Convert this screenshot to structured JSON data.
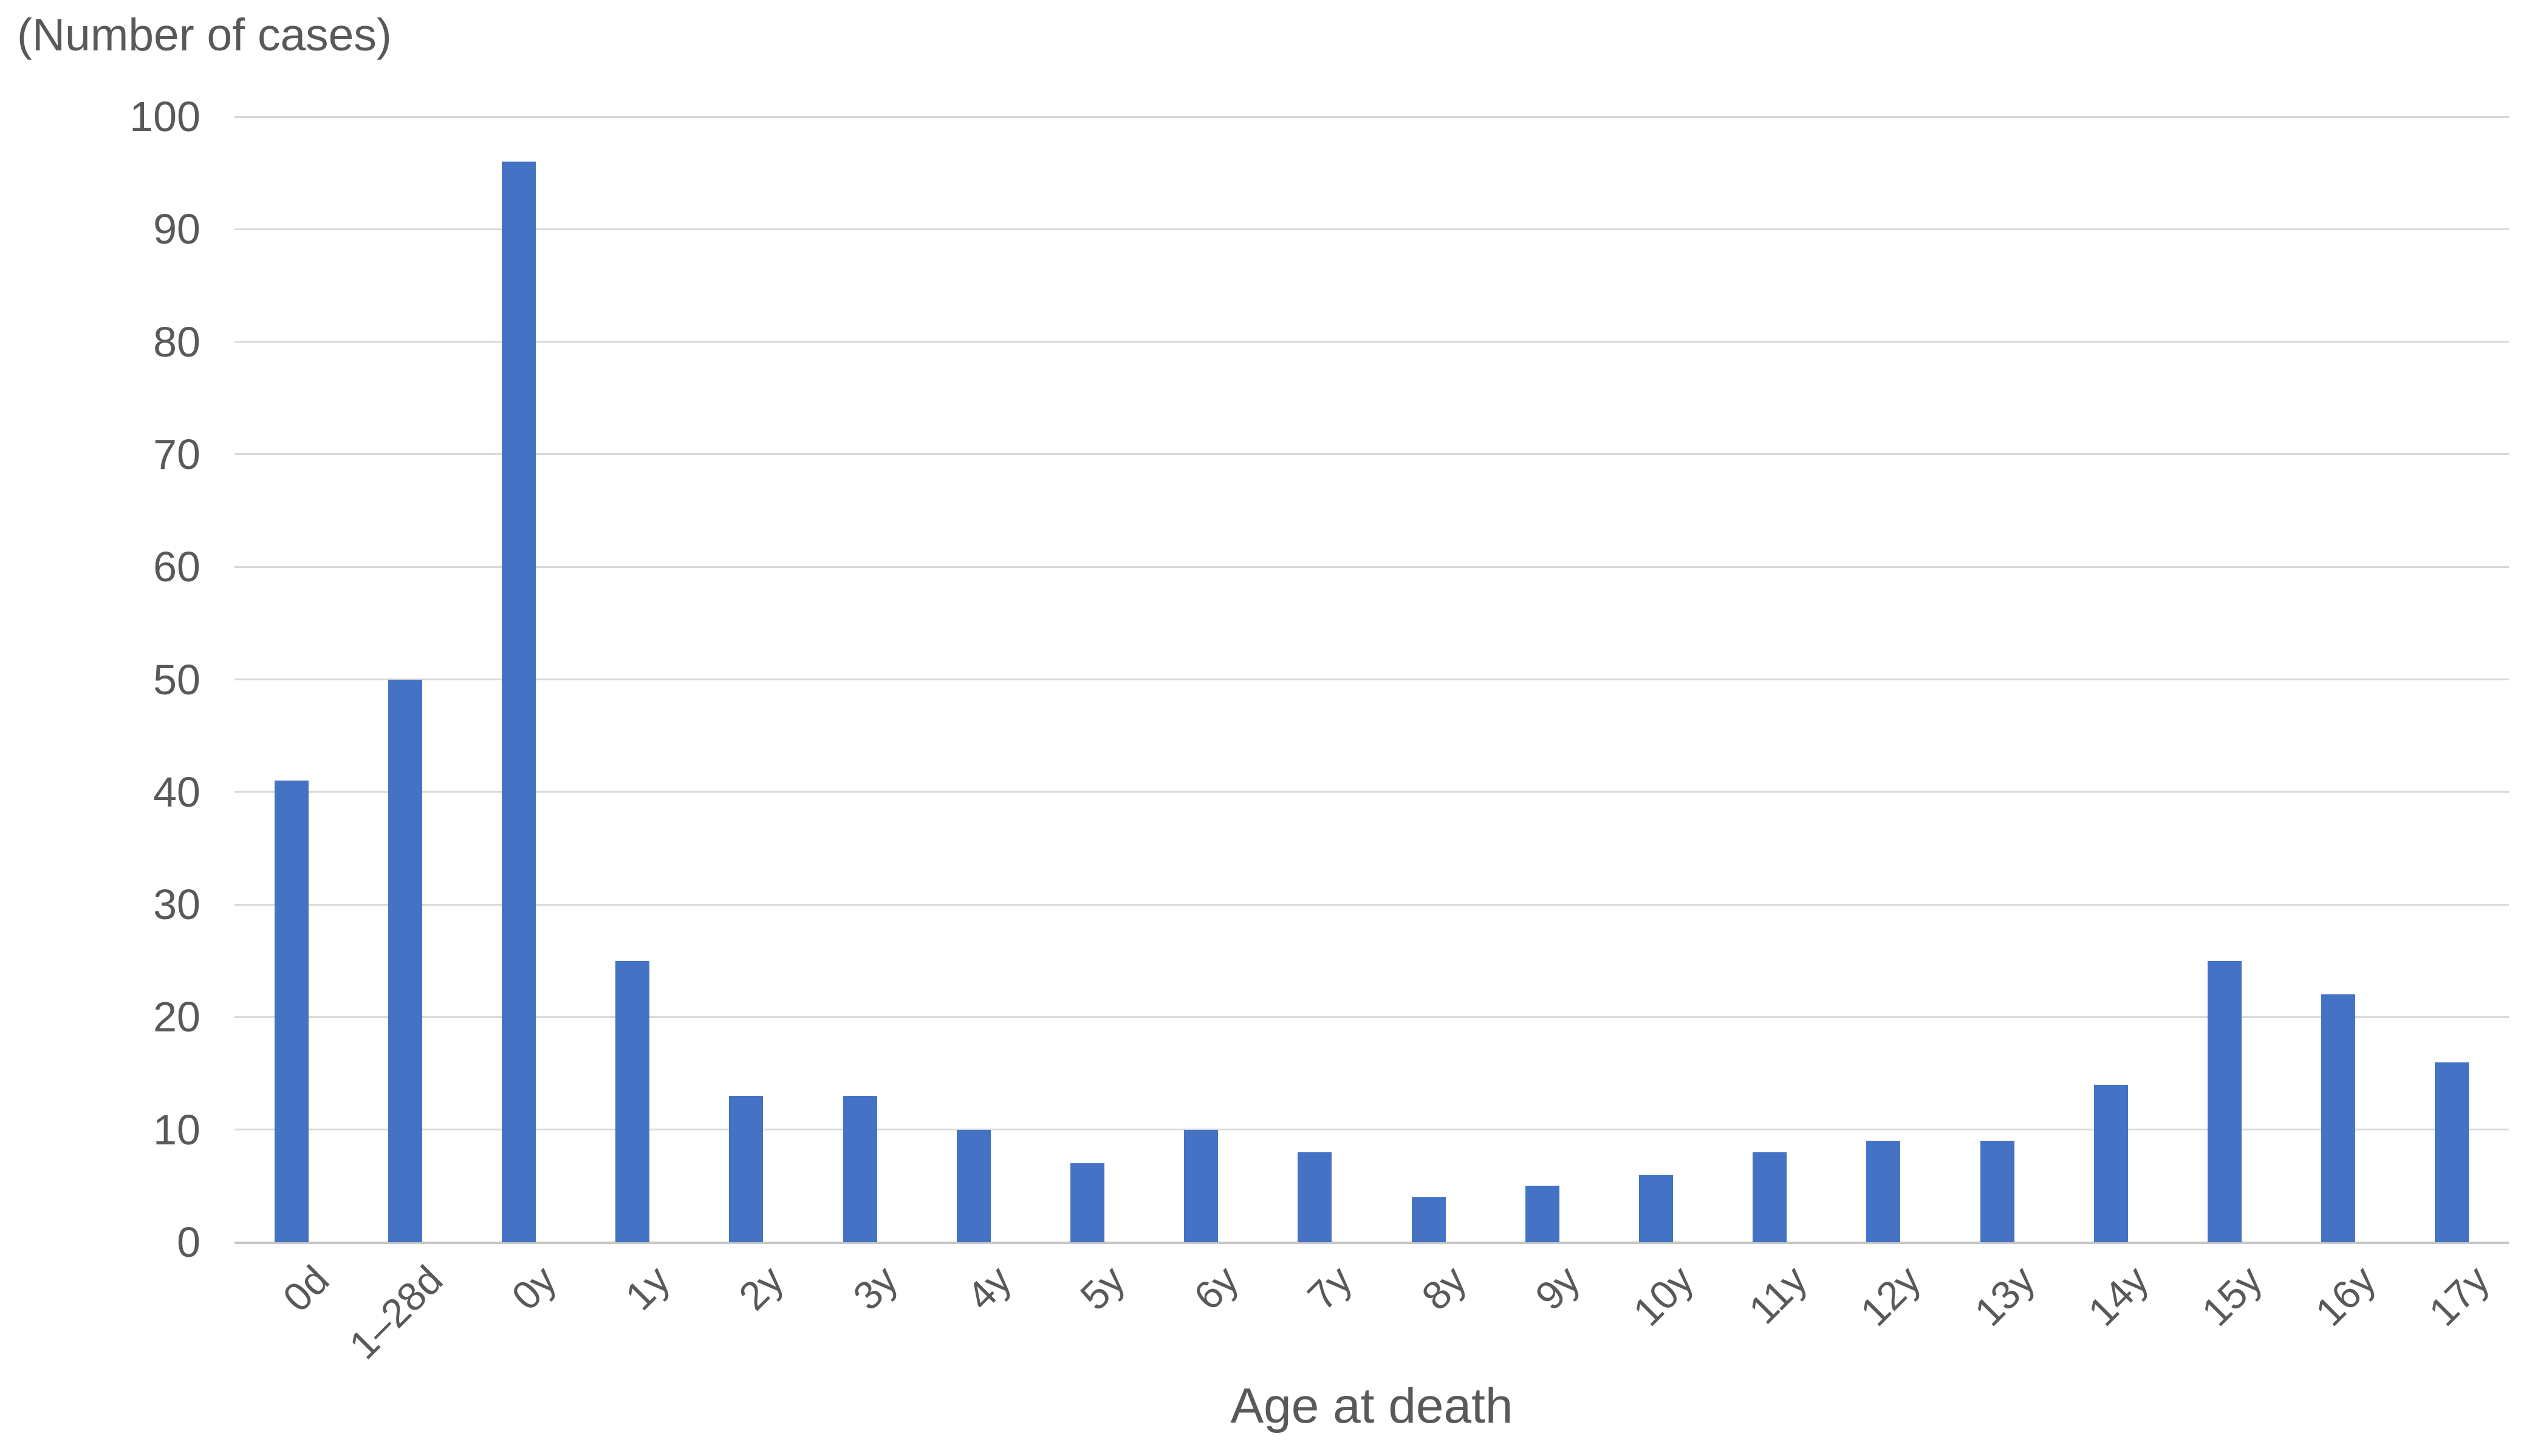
{
  "chart_data": {
    "type": "bar",
    "title": "(Number of cases)",
    "xlabel": "Age at death",
    "ylabel": "(Number of cases)",
    "categories": [
      "0d",
      "1–28d",
      "0y",
      "1y",
      "2y",
      "3y",
      "4y",
      "5y",
      "6y",
      "7y",
      "8y",
      "9y",
      "10y",
      "11y",
      "12y",
      "13y",
      "14y",
      "15y",
      "16y",
      "17y"
    ],
    "values": [
      41,
      50,
      96,
      25,
      13,
      13,
      10,
      7,
      10,
      8,
      4,
      5,
      6,
      8,
      9,
      9,
      14,
      25,
      22,
      16
    ],
    "series_name": "Number of cases",
    "ylim": [
      0,
      100
    ],
    "ytick_step": 10,
    "yticks": [
      0,
      10,
      20,
      30,
      40,
      50,
      60,
      70,
      80,
      90,
      100
    ],
    "grid": true,
    "legend_position": "none",
    "colors": {
      "bar": "#4472C4",
      "text": "#595959",
      "gridline": "#D9D9D9",
      "axis_line": "#C6C6C6",
      "background": "#FFFFFF"
    }
  }
}
